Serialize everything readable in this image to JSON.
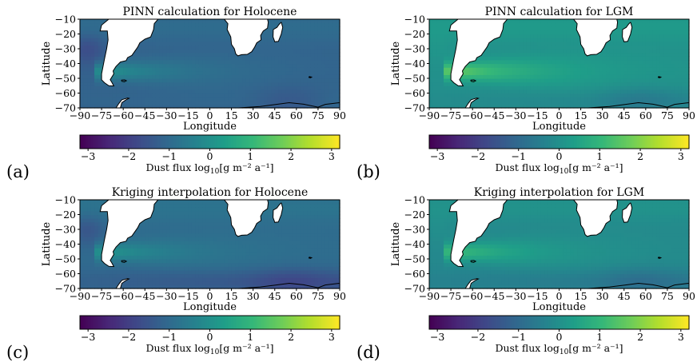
{
  "chart_data": [
    {
      "type": "heatmap",
      "panel_label": "(a)",
      "title": "PINN calculation for Holocene",
      "xlabel": "Longitude",
      "ylabel": "Latitude",
      "xlim": [
        -90,
        90
      ],
      "ylim": [
        -70,
        -10
      ],
      "xticks": [
        -90,
        -75,
        -60,
        -45,
        -30,
        -15,
        0,
        15,
        30,
        45,
        60,
        75,
        90
      ],
      "yticks": [
        -70,
        -60,
        -50,
        -40,
        -30,
        -20,
        -10
      ],
      "colorbar": {
        "label": "Dust flux log",
        "label_sub": "10",
        "label_units": "[g m⁻² a⁻¹]",
        "range": [
          -3.2,
          3.2
        ],
        "ticks": [
          -3,
          -2,
          -1,
          0,
          1,
          2,
          3
        ],
        "colormap": "viridis"
      },
      "field": {
        "base": -1.2,
        "plume_peak": 1.1,
        "south_boost": 0.1,
        "lgm_offset": 0.0
      }
    },
    {
      "type": "heatmap",
      "panel_label": "(b)",
      "title": "PINN calculation for LGM",
      "xlabel": "Longitude",
      "ylabel": "Latitude",
      "xlim": [
        -90,
        90
      ],
      "ylim": [
        -70,
        -10
      ],
      "xticks": [
        -90,
        -75,
        -60,
        -45,
        -30,
        -15,
        0,
        15,
        30,
        45,
        60,
        75,
        90
      ],
      "yticks": [
        -70,
        -60,
        -50,
        -40,
        -30,
        -20,
        -10
      ],
      "colorbar": {
        "label": "Dust flux log",
        "label_sub": "10",
        "label_units": "[g m⁻² a⁻¹]",
        "range": [
          -3.2,
          3.2
        ],
        "ticks": [
          -3,
          -2,
          -1,
          0,
          1,
          2,
          3
        ],
        "colormap": "viridis"
      },
      "field": {
        "base": 0.0,
        "plume_peak": 1.5,
        "south_boost": -0.2,
        "lgm_offset": 0.0
      }
    },
    {
      "type": "heatmap",
      "panel_label": "(c)",
      "title": "Kriging interpolation for Holocene",
      "xlabel": "Longitude",
      "ylabel": "Latitude",
      "xlim": [
        -90,
        90
      ],
      "ylim": [
        -70,
        -10
      ],
      "xticks": [
        -90,
        -75,
        -60,
        -45,
        -30,
        -15,
        0,
        15,
        30,
        45,
        60,
        75,
        90
      ],
      "yticks": [
        -70,
        -60,
        -50,
        -40,
        -30,
        -20,
        -10
      ],
      "colorbar": {
        "label": "Dust flux log",
        "label_sub": "10",
        "label_units": "[g m⁻² a⁻¹]",
        "range": [
          -3.2,
          3.2
        ],
        "ticks": [
          -3,
          -2,
          -1,
          0,
          1,
          2,
          3
        ],
        "colormap": "viridis"
      },
      "field": {
        "base": -1.0,
        "plume_peak": 1.0,
        "south_boost": -0.4,
        "lgm_offset": 0.0
      }
    },
    {
      "type": "heatmap",
      "panel_label": "(d)",
      "title": "Kriging interpolation for LGM",
      "xlabel": "Longitude",
      "ylabel": "Latitude",
      "xlim": [
        -90,
        90
      ],
      "ylim": [
        -70,
        -10
      ],
      "xticks": [
        -90,
        -75,
        -60,
        -45,
        -30,
        -15,
        0,
        15,
        30,
        45,
        60,
        75,
        90
      ],
      "yticks": [
        -70,
        -60,
        -50,
        -40,
        -30,
        -20,
        -10
      ],
      "colorbar": {
        "label": "Dust flux log",
        "label_sub": "10",
        "label_units": "[g m⁻² a⁻¹]",
        "range": [
          -3.2,
          3.2
        ],
        "ticks": [
          -3,
          -2,
          -1,
          0,
          1,
          2,
          3
        ],
        "colormap": "viridis"
      },
      "field": {
        "base": -0.2,
        "plume_peak": 1.2,
        "south_boost": -0.3,
        "lgm_offset": 0.0
      }
    }
  ]
}
